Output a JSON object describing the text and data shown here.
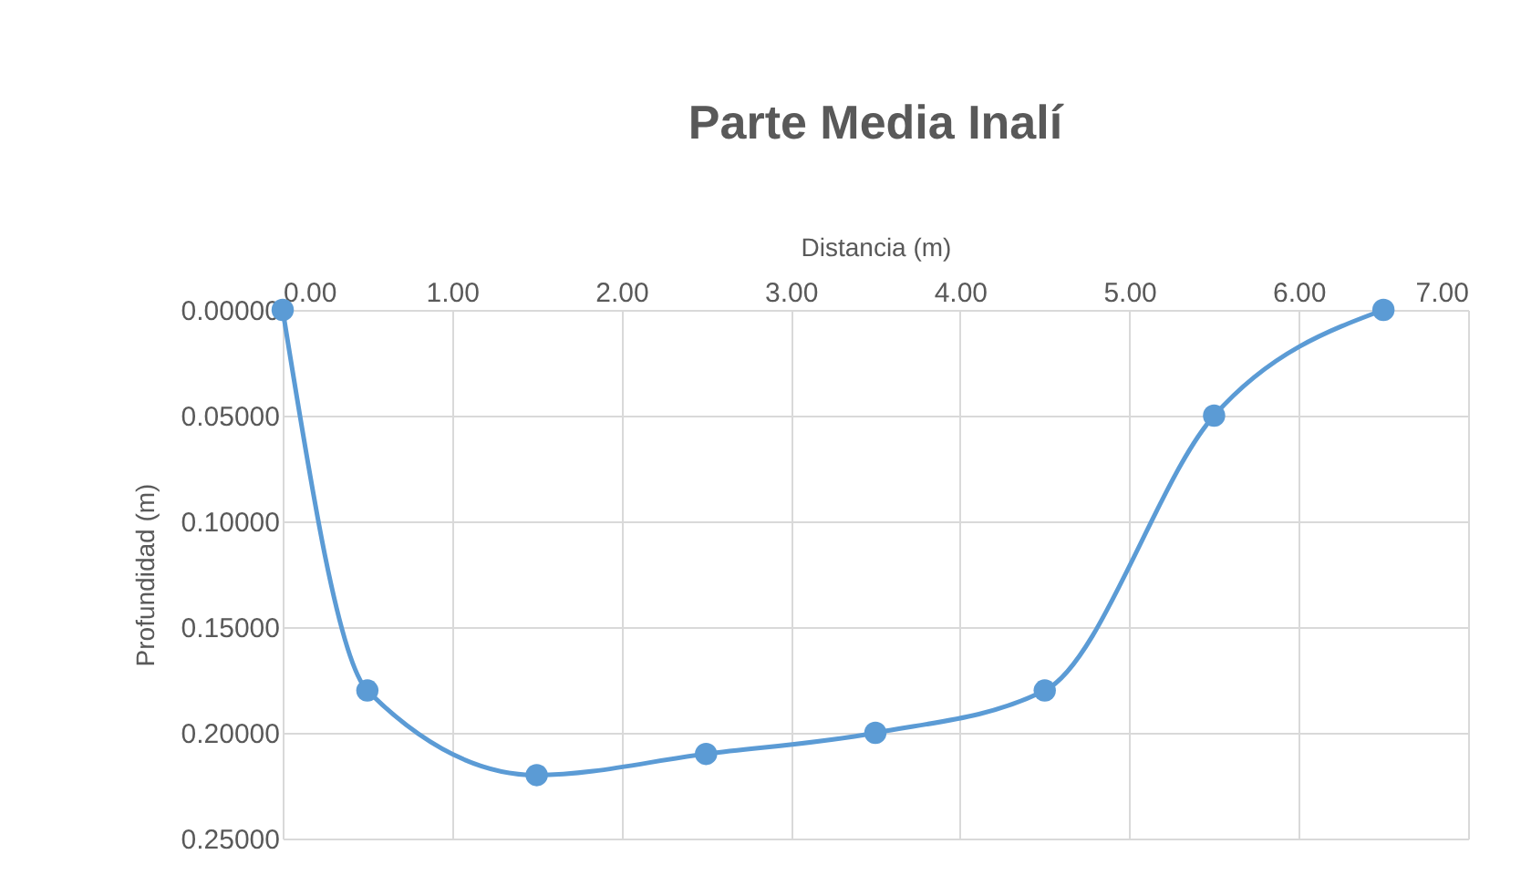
{
  "chart_data": {
    "type": "line",
    "title": "Parte Media Inalí",
    "xlabel": "Distancia (m)",
    "ylabel": "Profundidad (m)",
    "x": [
      0,
      0.5,
      1.5,
      2.5,
      3.5,
      4.5,
      5.5,
      6.5
    ],
    "series": [
      {
        "color": "#5b9bd5",
        "values": [
          0,
          0.18,
          0.22,
          0.21,
          0.2,
          0.18,
          0.05,
          0
        ]
      }
    ],
    "xlim": [
      0,
      7
    ],
    "xticks": [
      {
        "value": 0,
        "label": "0.00"
      },
      {
        "value": 1,
        "label": "1.00"
      },
      {
        "value": 2,
        "label": "2.00"
      },
      {
        "value": 3,
        "label": "3.00"
      },
      {
        "value": 4,
        "label": "4.00"
      },
      {
        "value": 5,
        "label": "5.00"
      },
      {
        "value": 6,
        "label": "6.00"
      },
      {
        "value": 7,
        "label": "7.00"
      }
    ],
    "ylim": [
      0.25,
      0
    ],
    "yticks": [
      {
        "value": 0,
        "label": "0.00000"
      },
      {
        "value": 0.05,
        "label": "0.05000"
      },
      {
        "value": 0.1,
        "label": "0.10000"
      },
      {
        "value": 0.15,
        "label": "0.15000"
      },
      {
        "value": 0.2,
        "label": "0.20000"
      },
      {
        "value": 0.25,
        "label": "0.25000"
      }
    ],
    "grid": true,
    "marker": "circle",
    "line_style": "solid"
  }
}
